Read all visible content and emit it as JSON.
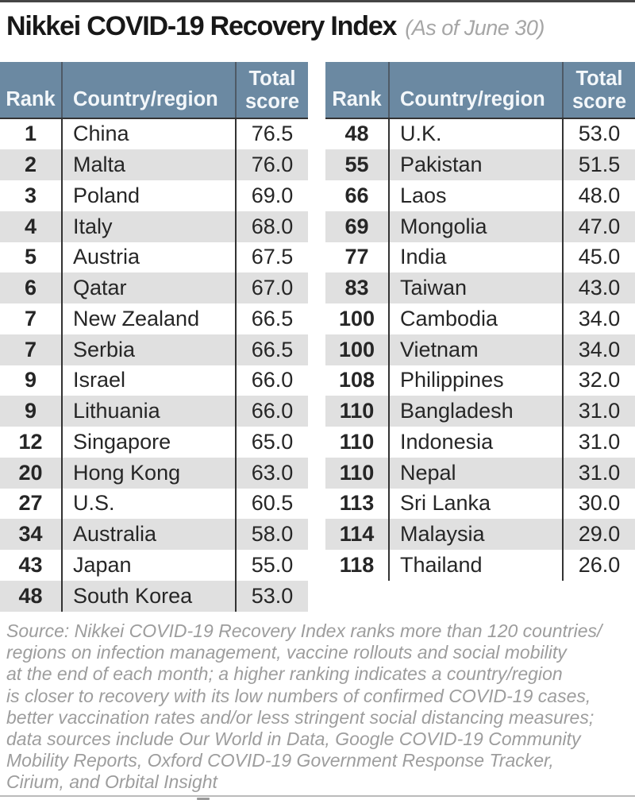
{
  "title": "Nikkei COVID-19 Recovery Index",
  "subtitle": "(As of June 30)",
  "columns": {
    "rank": "Rank",
    "country": "Country/region",
    "score_line1": "Total",
    "score_line2": "score"
  },
  "footer": {
    "lines": [
      "Source: Nikkei COVID-19 Recovery Index ranks more than 120 countries/",
      "regions on infection management, vaccine rollouts and social mobility",
      "at the end of each month; a higher ranking indicates a country/region",
      "is closer to recovery with its low numbers of confirmed COVID-19 cases,",
      "better vaccination rates and/or less stringent social distancing measures;",
      "data sources include Our World in Data, Google COVID-19 Community",
      "Mobility Reports, Oxford COVID-19 Government Response Tracker,",
      "Cirium, and Orbital Insight"
    ]
  },
  "colors": {
    "header_bg": "#6b89a2",
    "row_alt": "#e0e0e0",
    "divider": "#333333",
    "subtitle_gray": "#a6a6a6",
    "footer_gray": "#9d9d9d"
  },
  "chart_data": {
    "type": "table",
    "title": "Nikkei COVID-19 Recovery Index",
    "as_of": "June 30",
    "columns": [
      "Rank",
      "Country/region",
      "Total score"
    ],
    "left_rows": [
      [
        1,
        "China",
        76.5
      ],
      [
        2,
        "Malta",
        76.0
      ],
      [
        3,
        "Poland",
        69.0
      ],
      [
        4,
        "Italy",
        68.0
      ],
      [
        5,
        "Austria",
        67.5
      ],
      [
        6,
        "Qatar",
        67.0
      ],
      [
        7,
        "New Zealand",
        66.5
      ],
      [
        7,
        "Serbia",
        66.5
      ],
      [
        9,
        "Israel",
        66.0
      ],
      [
        9,
        "Lithuania",
        66.0
      ],
      [
        12,
        "Singapore",
        65.0
      ],
      [
        20,
        "Hong Kong",
        63.0
      ],
      [
        27,
        "U.S.",
        60.5
      ],
      [
        34,
        "Australia",
        58.0
      ],
      [
        43,
        "Japan",
        55.0
      ],
      [
        48,
        "South Korea",
        53.0
      ]
    ],
    "right_rows": [
      [
        48,
        "U.K.",
        53.0
      ],
      [
        55,
        "Pakistan",
        51.5
      ],
      [
        66,
        "Laos",
        48.0
      ],
      [
        69,
        "Mongolia",
        47.0
      ],
      [
        77,
        "India",
        45.0
      ],
      [
        83,
        "Taiwan",
        43.0
      ],
      [
        100,
        "Cambodia",
        34.0
      ],
      [
        100,
        "Vietnam",
        34.0
      ],
      [
        108,
        "Philippines",
        32.0
      ],
      [
        110,
        "Bangladesh",
        31.0
      ],
      [
        110,
        "Indonesia",
        31.0
      ],
      [
        110,
        "Nepal",
        31.0
      ],
      [
        113,
        "Sri Lanka",
        30.0
      ],
      [
        114,
        "Malaysia",
        29.0
      ],
      [
        118,
        "Thailand",
        26.0
      ]
    ]
  }
}
